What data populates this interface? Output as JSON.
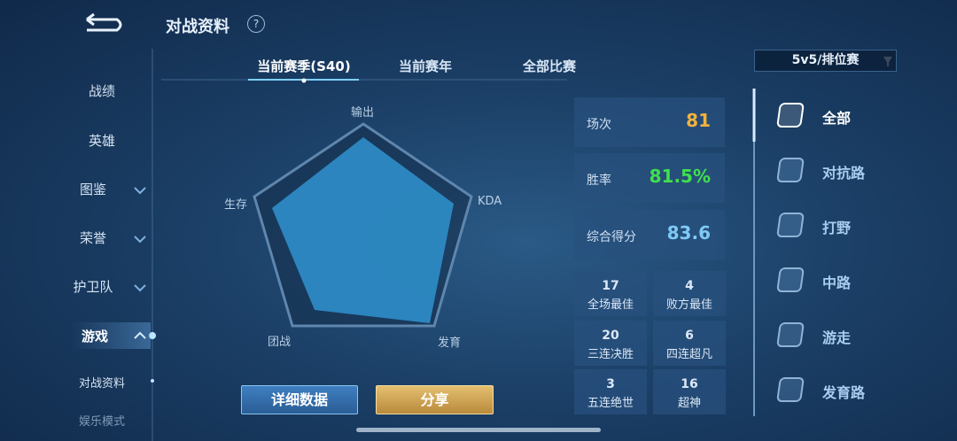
{
  "header": {
    "title": "对战资料",
    "help": "?"
  },
  "sidebar": {
    "items": [
      "战绩",
      "英雄",
      "图鉴",
      "荣誉",
      "护卫队",
      "游戏",
      "对战资料",
      "娱乐模式"
    ]
  },
  "tabs": [
    "当前赛季(S40)",
    "当前赛年",
    "全部比赛"
  ],
  "filter": "5v5/排位赛",
  "radar": {
    "axes": [
      "输出",
      "KDA",
      "发育",
      "团战",
      "生存"
    ]
  },
  "stats": [
    {
      "label": "场次",
      "value": 81
    },
    {
      "label": "胜率",
      "value": "81.5%"
    },
    {
      "label": "综合得分",
      "value": 83.6
    }
  ],
  "achievements": [
    {
      "count": 17,
      "label": "全场最佳"
    },
    {
      "count": 4,
      "label": "败方最佳"
    },
    {
      "count": 20,
      "label": "三连决胜"
    },
    {
      "count": 6,
      "label": "四连超凡"
    },
    {
      "count": 3,
      "label": "五连绝世"
    },
    {
      "count": 16,
      "label": "超神"
    }
  ],
  "buttons": [
    "详细数据",
    "分享"
  ],
  "roles": [
    "全部",
    "对抗路",
    "打野",
    "中路",
    "游走",
    "发育路"
  ]
}
